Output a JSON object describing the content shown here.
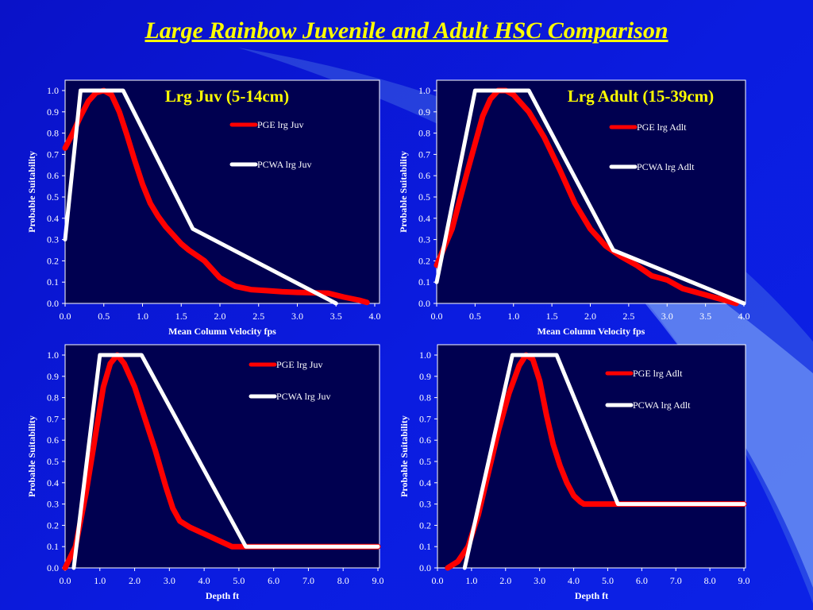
{
  "slide": {
    "title": "Large Rainbow Juvenile and Adult HSC Comparison",
    "background_color": "#0b1adf",
    "plot_background": "#000050",
    "title_color": "#ffff00",
    "label_color": "#ffffff"
  },
  "chart_data": [
    {
      "type": "line",
      "title": "Lrg Juv (5-14cm)",
      "xlabel": "Mean Column Velocity fps",
      "ylabel": "Probable Suitability",
      "xlim": [
        0,
        4
      ],
      "ylim": [
        0,
        1
      ],
      "xticks": [
        "0.0",
        "0.5",
        "1.0",
        "1.5",
        "2.0",
        "2.5",
        "3.0",
        "3.5",
        "4.0"
      ],
      "yticks": [
        "0.0",
        "0.1",
        "0.2",
        "0.3",
        "0.4",
        "0.5",
        "0.6",
        "0.7",
        "0.8",
        "0.9",
        "1.0"
      ],
      "legend_position": "top-right",
      "series": [
        {
          "name": "PGE lrg Juv",
          "color": "#ff0000",
          "x": [
            0,
            0.1,
            0.2,
            0.3,
            0.4,
            0.5,
            0.6,
            0.7,
            0.8,
            0.9,
            1.0,
            1.1,
            1.2,
            1.3,
            1.4,
            1.5,
            1.6,
            1.8,
            2.0,
            2.2,
            2.4,
            2.6,
            2.8,
            3.0,
            3.2,
            3.4,
            3.6,
            3.8,
            3.9
          ],
          "y": [
            0.73,
            0.8,
            0.88,
            0.95,
            0.99,
            1.0,
            0.98,
            0.9,
            0.79,
            0.67,
            0.56,
            0.47,
            0.41,
            0.36,
            0.32,
            0.28,
            0.25,
            0.2,
            0.12,
            0.08,
            0.065,
            0.06,
            0.055,
            0.052,
            0.05,
            0.048,
            0.03,
            0.015,
            0.005
          ]
        },
        {
          "name": "PCWA lrg Juv",
          "color": "#ffffff",
          "x": [
            0,
            0.2,
            0.75,
            1.65,
            3.5
          ],
          "y": [
            0.3,
            1.0,
            1.0,
            0.35,
            0.0
          ]
        }
      ]
    },
    {
      "type": "line",
      "title": "Lrg Adult (15-39cm)",
      "xlabel": "Mean Column Velocity fps",
      "ylabel": "Probable Suitability",
      "xlim": [
        0,
        4
      ],
      "ylim": [
        0,
        1
      ],
      "xticks": [
        "0.0",
        "0.5",
        "1.0",
        "1.5",
        "2.0",
        "2.5",
        "3.0",
        "3.5",
        "4.0"
      ],
      "yticks": [
        "0.0",
        "0.1",
        "0.2",
        "0.3",
        "0.4",
        "0.5",
        "0.6",
        "0.7",
        "0.8",
        "0.9",
        "1.0"
      ],
      "legend_position": "top-right",
      "series": [
        {
          "name": "PGE lrg Adlt",
          "color": "#ff0000",
          "x": [
            0,
            0.2,
            0.4,
            0.6,
            0.7,
            0.8,
            0.9,
            1.0,
            1.2,
            1.4,
            1.6,
            1.8,
            2.0,
            2.2,
            2.4,
            2.6,
            2.8,
            3.0,
            3.2,
            3.4,
            3.6,
            3.8,
            3.9
          ],
          "y": [
            0.18,
            0.35,
            0.62,
            0.88,
            0.96,
            1.0,
            1.0,
            0.98,
            0.9,
            0.78,
            0.63,
            0.47,
            0.35,
            0.27,
            0.22,
            0.18,
            0.13,
            0.11,
            0.07,
            0.05,
            0.03,
            0.01,
            0.0
          ]
        },
        {
          "name": "PCWA lrg Adlt",
          "color": "#ffffff",
          "x": [
            0,
            0.5,
            1.2,
            2.3,
            4.0
          ],
          "y": [
            0.1,
            1.0,
            1.0,
            0.25,
            0.0
          ]
        }
      ]
    },
    {
      "type": "line",
      "title": "",
      "xlabel": "Depth ft",
      "ylabel": "Probable Suitability",
      "xlim": [
        0,
        9
      ],
      "ylim": [
        0,
        1
      ],
      "xticks": [
        "0.0",
        "1.0",
        "2.0",
        "3.0",
        "4.0",
        "5.0",
        "6.0",
        "7.0",
        "8.0",
        "9.0"
      ],
      "yticks": [
        "0.0",
        "0.1",
        "0.2",
        "0.3",
        "0.4",
        "0.5",
        "0.6",
        "0.7",
        "0.8",
        "0.9",
        "1.0"
      ],
      "legend_position": "top-right",
      "series": [
        {
          "name": "PGE lrg Juv",
          "color": "#ff0000",
          "x": [
            0,
            0.3,
            0.6,
            0.9,
            1.1,
            1.3,
            1.5,
            1.7,
            2.0,
            2.3,
            2.6,
            2.9,
            3.1,
            3.3,
            3.6,
            4.0,
            4.4,
            4.8,
            9.0
          ],
          "y": [
            0.0,
            0.1,
            0.35,
            0.65,
            0.85,
            0.96,
            1.0,
            0.96,
            0.85,
            0.7,
            0.55,
            0.38,
            0.28,
            0.22,
            0.19,
            0.16,
            0.13,
            0.1,
            0.1
          ]
        },
        {
          "name": "PCWA lrg Juv",
          "color": "#ffffff",
          "x": [
            0.25,
            1.0,
            2.2,
            5.2,
            9.0
          ],
          "y": [
            0.0,
            1.0,
            1.0,
            0.1,
            0.1
          ]
        }
      ]
    },
    {
      "type": "line",
      "title": "",
      "xlabel": "Depth ft",
      "ylabel": "Probable Suitability",
      "xlim": [
        0,
        9
      ],
      "ylim": [
        0,
        1
      ],
      "xticks": [
        "0.0",
        "1.0",
        "2.0",
        "3.0",
        "4.0",
        "5.0",
        "6.0",
        "7.0",
        "8.0",
        "9.0"
      ],
      "yticks": [
        "0.0",
        "0.1",
        "0.2",
        "0.3",
        "0.4",
        "0.5",
        "0.6",
        "0.7",
        "0.8",
        "0.9",
        "1.0"
      ],
      "legend_position": "top-right",
      "series": [
        {
          "name": "PGE lrg Adlt",
          "color": "#ff0000",
          "x": [
            0.3,
            0.6,
            0.9,
            1.2,
            1.5,
            1.8,
            2.1,
            2.4,
            2.6,
            2.8,
            3.0,
            3.2,
            3.4,
            3.6,
            3.8,
            4.0,
            4.2,
            4.3,
            5.3,
            9.0
          ],
          "y": [
            0.0,
            0.03,
            0.1,
            0.25,
            0.45,
            0.65,
            0.82,
            0.95,
            1.0,
            0.98,
            0.88,
            0.72,
            0.58,
            0.48,
            0.4,
            0.34,
            0.31,
            0.3,
            0.3,
            0.3
          ]
        },
        {
          "name": "PCWA lrg Adlt",
          "color": "#ffffff",
          "x": [
            0.8,
            2.2,
            3.5,
            5.3,
            9.0
          ],
          "y": [
            0.0,
            1.0,
            1.0,
            0.3,
            0.3
          ]
        }
      ]
    }
  ]
}
